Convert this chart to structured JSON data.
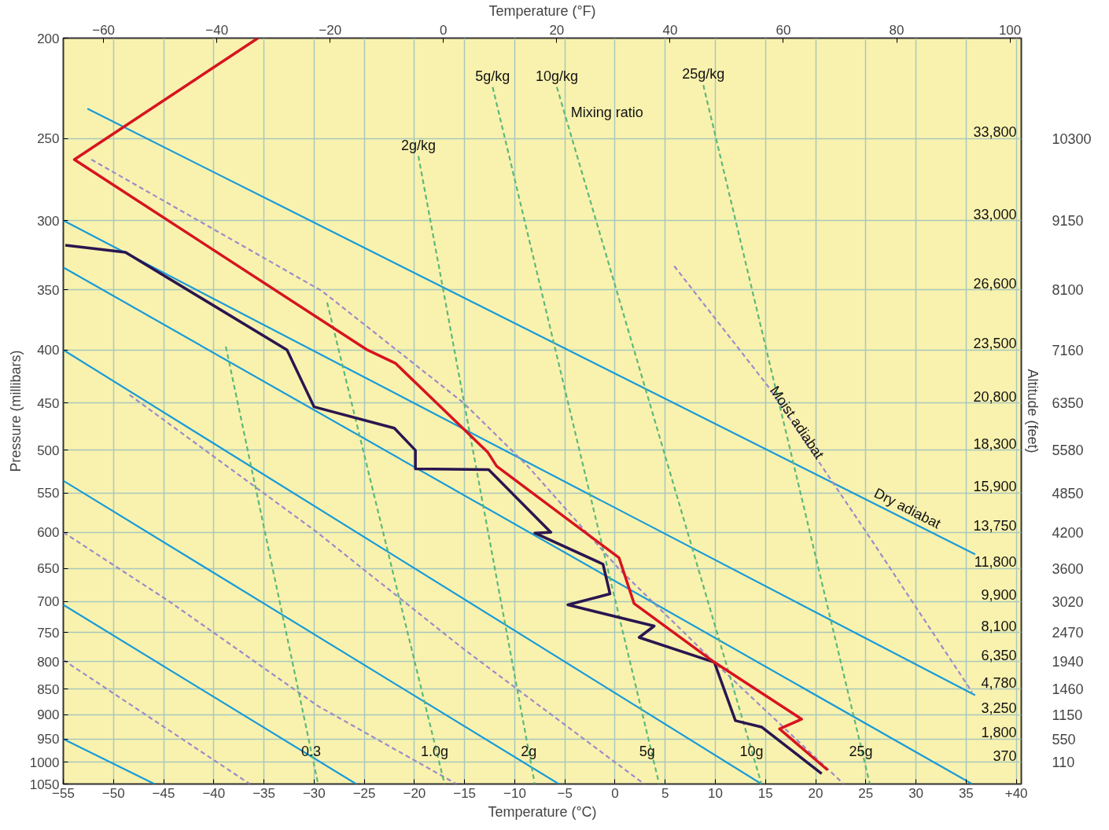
{
  "chart_data": {
    "type": "line",
    "xlabel": "Temperature (°C)",
    "ylabel": "Pressure (millibars)",
    "x2label": "Temperature (°F)",
    "y2label": "Altitude (feet)",
    "log": "y",
    "grid": true,
    "marker": "none",
    "xlim": [
      -55,
      40.5
    ],
    "xticks": [
      {
        "value": -55,
        "label": "−55"
      },
      {
        "value": -50,
        "label": "−50"
      },
      {
        "value": -45,
        "label": "−45"
      },
      {
        "value": -40,
        "label": "−40"
      },
      {
        "value": -35,
        "label": "−35"
      },
      {
        "value": -30,
        "label": "−30"
      },
      {
        "value": -25,
        "label": "−25"
      },
      {
        "value": -20,
        "label": "−20"
      },
      {
        "value": -15,
        "label": "−15"
      },
      {
        "value": -10,
        "label": "−10"
      },
      {
        "value": -5,
        "label": "−5"
      },
      0,
      5,
      10,
      15,
      20,
      25,
      30,
      35,
      {
        "value": 40,
        "label": "+40"
      }
    ],
    "x2lim": [
      -67.1,
      102
    ],
    "x2ticks": [
      {
        "value": -60,
        "label": "−60"
      },
      {
        "value": -40,
        "label": "−40"
      },
      {
        "value": -20,
        "label": "−20"
      },
      0,
      20,
      40,
      60,
      80,
      100
    ],
    "ylim": [
      1050,
      200
    ],
    "yticks": [
      200,
      250,
      300,
      350,
      400,
      450,
      500,
      550,
      600,
      650,
      700,
      750,
      800,
      850,
      900,
      950,
      1000,
      1050
    ],
    "series": [
      {
        "color": "#1a9bd7",
        "line_style": "solid",
        "x": [
          -52.6,
          35.9
        ],
        "values": [
          234,
          630
        ]
      },
      {
        "color": "#1a9bd7",
        "line_style": "solid",
        "x": [
          -55,
          35.9
        ],
        "values": [
          300,
          862
        ]
      },
      {
        "color": "#1a9bd7",
        "line_style": "solid",
        "x": [
          -55,
          35.6
        ],
        "values": [
          333,
          1050
        ]
      },
      {
        "color": "#1a9bd7",
        "line_style": "solid",
        "x": [
          -55,
          14.6
        ],
        "values": [
          400,
          1050
        ]
      },
      {
        "color": "#1a9bd7",
        "line_style": "solid",
        "x": [
          -55,
          -5.6
        ],
        "values": [
          535,
          1050
        ]
      },
      {
        "color": "#1a9bd7",
        "line_style": "solid",
        "x": [
          -55,
          -25.8
        ],
        "values": [
          705,
          1050
        ]
      },
      {
        "color": "#1a9bd7",
        "line_style": "solid",
        "x": [
          -55,
          -45.9
        ],
        "values": [
          950,
          1050
        ]
      },
      {
        "color": "#9a8cc8",
        "line_style": "dashed",
        "x": [
          -52.2,
          -29.2,
          -15.1,
          -8.7,
          0.4,
          9.9,
          22.8
        ],
        "values": [
          262,
          351,
          450,
          518,
          651,
          801,
          1050
        ]
      },
      {
        "color": "#9a8cc8",
        "line_style": "dashed",
        "x": [
          -48.4,
          -29.9,
          -15.0,
          2.9
        ],
        "values": [
          442,
          598,
          779,
          1050
        ]
      },
      {
        "color": "#9a8cc8",
        "line_style": "dashed",
        "x": [
          -55,
          -44.6,
          -29.6,
          -15.8
        ],
        "values": [
          600,
          698,
          883,
          1050
        ]
      },
      {
        "color": "#9a8cc8",
        "line_style": "dashed",
        "x": [
          -55,
          -36.4
        ],
        "values": [
          797,
          1050
        ]
      },
      {
        "color": "#9a8cc8",
        "line_style": "dashed",
        "x": [
          5.9,
          15.2,
          25.5,
          35.6
        ],
        "values": [
          332,
          433,
          609,
          856
        ]
      },
      {
        "color": "#5cb87a",
        "line_style": "dashed",
        "x": [
          -38.8,
          -29.6
        ],
        "values": [
          397,
          1050
        ]
      },
      {
        "color": "#5cb87a",
        "line_style": "dashed",
        "x": [
          -28.7,
          -17.0
        ],
        "values": [
          360,
          1050
        ]
      },
      {
        "color": "#5cb87a",
        "line_style": "dashed",
        "x": [
          -19.6,
          -8.0
        ],
        "values": [
          260,
          1050
        ]
      },
      {
        "color": "#5cb87a",
        "line_style": "dashed",
        "x": [
          -12.2,
          4.4
        ],
        "values": [
          223,
          1050
        ]
      },
      {
        "color": "#5cb87a",
        "line_style": "dashed",
        "x": [
          -5.8,
          14.6
        ],
        "values": [
          223,
          1050
        ]
      },
      {
        "color": "#5cb87a",
        "line_style": "dashed",
        "x": [
          8.8,
          25.4
        ],
        "values": [
          222,
          1050
        ]
      },
      {
        "color": "#2a1650",
        "line_style": "solid",
        "x": [
          -54.8,
          -48.8,
          -32.7,
          -30.0,
          -22.0,
          -19.9,
          -19.9,
          -12.6,
          -6.4,
          -8.0,
          -1.2,
          -0.5,
          -4.7,
          3.9,
          2.4,
          9.9,
          12.0,
          14.6,
          20.6
        ],
        "values": [
          317,
          322,
          400,
          454,
          476,
          500,
          521,
          522,
          600,
          601,
          644,
          688,
          705,
          739,
          758,
          801,
          912,
          925,
          1026
        ]
      },
      {
        "color": "#d7141f",
        "line_style": "solid",
        "x": [
          -35.6,
          -53.9,
          -24.7,
          -21.9,
          -12.7,
          -11.8,
          0.4,
          1.9,
          9.9,
          18.6,
          16.4,
          21.2
        ],
        "values": [
          200,
          262,
          400,
          412,
          502,
          518,
          635,
          703,
          801,
          909,
          929,
          1018
        ]
      }
    ],
    "annotations": [
      {
        "text": "2g/kg",
        "x": -19.6,
        "y": 260
      },
      {
        "text": "5g/kg",
        "x": -12.2,
        "y": 223
      },
      {
        "text": "10g/kg",
        "x": -5.8,
        "y": 223
      },
      {
        "text": "25g/kg",
        "x": 8.8,
        "y": 222
      },
      {
        "text": "Mixing ratio",
        "x": -5.2,
        "y": 236
      },
      {
        "text": "0.3",
        "x": -30.3,
        "y": 976
      },
      {
        "text": "1.0g",
        "x": -18.0,
        "y": 976
      },
      {
        "text": "2g",
        "x": -8.6,
        "y": 976
      },
      {
        "text": "5g",
        "x": 3.2,
        "y": 976
      },
      {
        "text": "10g",
        "x": 13.6,
        "y": 976
      },
      {
        "text": "25g",
        "x": 24.5,
        "y": 976
      },
      {
        "text": "Moist adiabat",
        "x": 17.8,
        "y": 478
      },
      {
        "text": "Dry adiabat",
        "x": 28.8,
        "y": 582
      },
      "33,800",
      "33,000",
      "26,600",
      "23,500",
      "20,800",
      "18,300",
      "15,900",
      "13,750",
      "11,800",
      "9,900",
      "8,100",
      "6,350",
      "4,780",
      "3,250",
      "1,800",
      "370",
      "10300",
      "9150",
      "8100",
      "7160",
      "6350",
      "5580",
      "4850",
      "4200",
      "3600",
      "3020",
      "2470",
      "1940",
      "1460",
      "1150",
      "550",
      "110"
    ]
  }
}
